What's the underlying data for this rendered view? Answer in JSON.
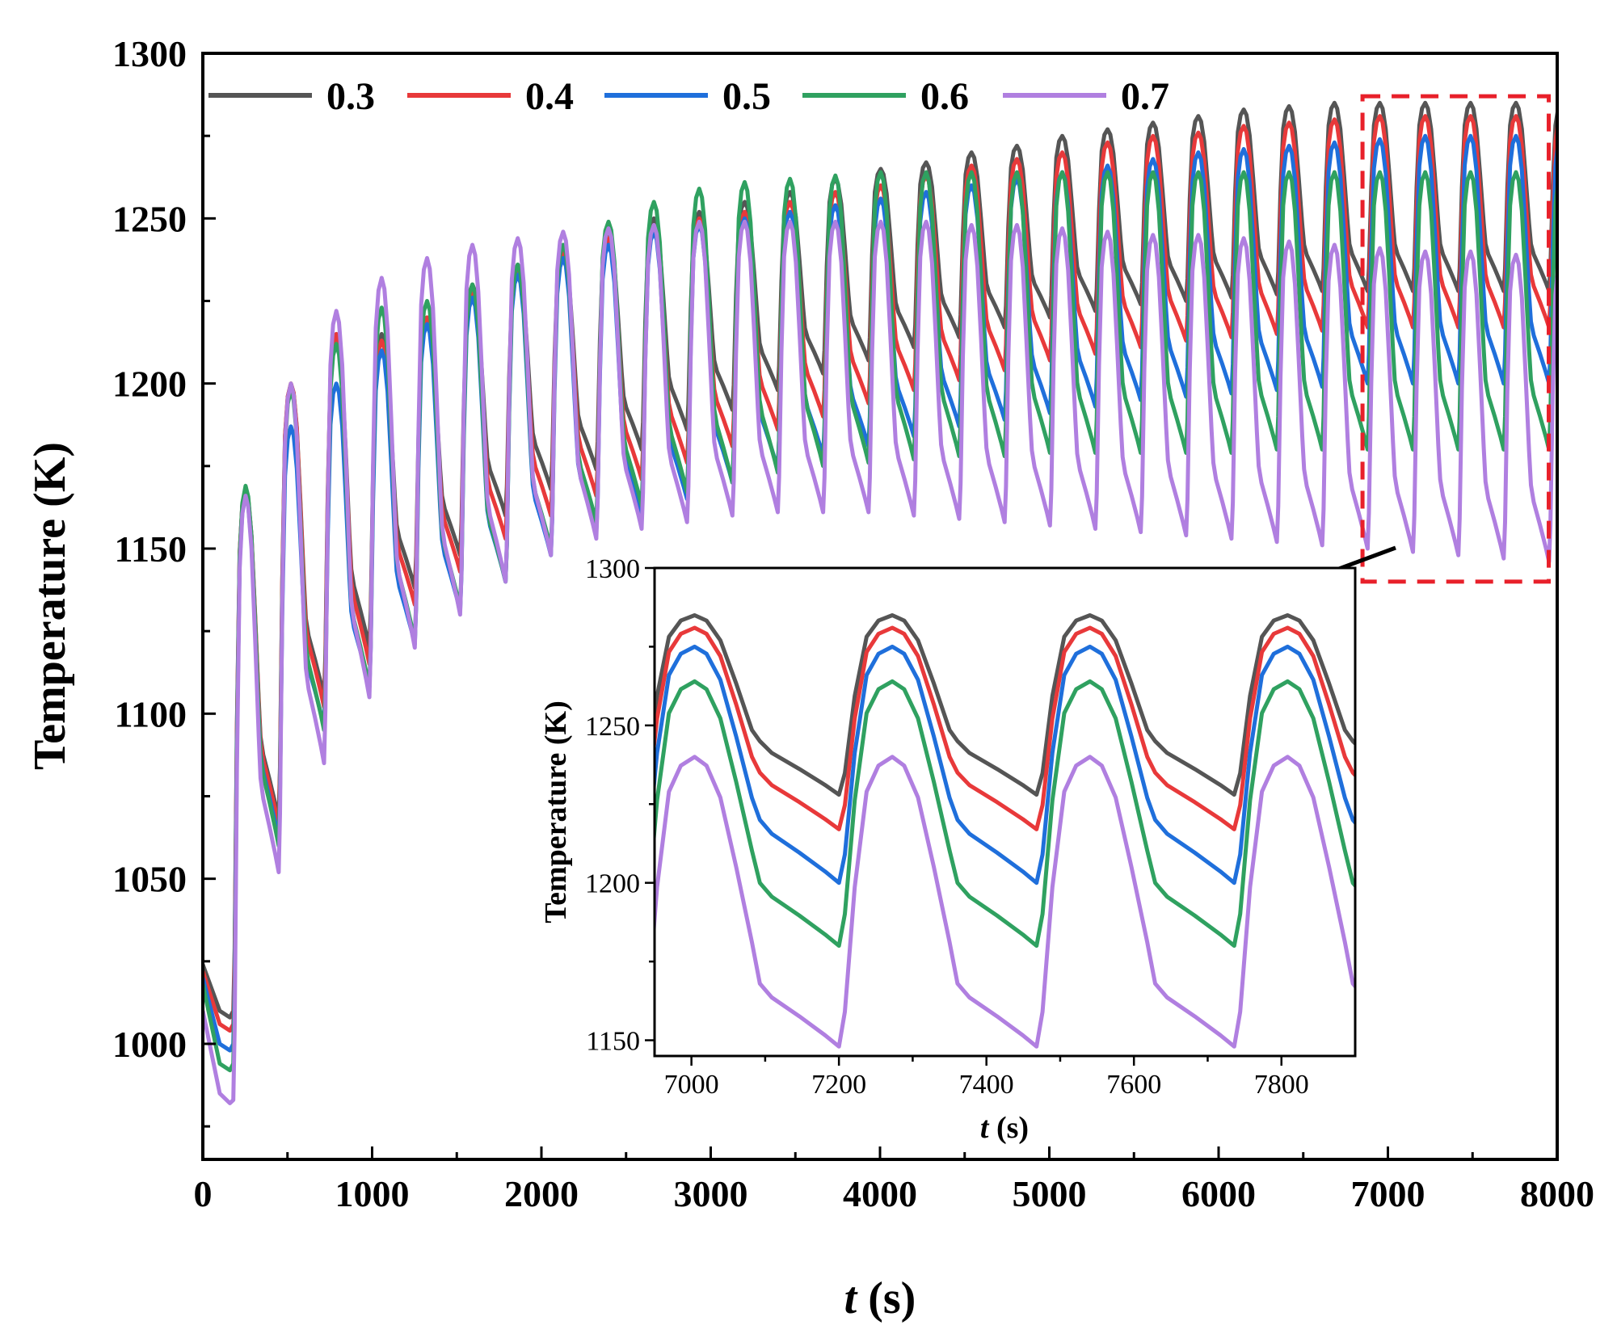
{
  "chart_data": [
    {
      "type": "line",
      "xlabel_italic": "t",
      "xlabel_rest": " (s)",
      "ylabel": "Temperature (K)",
      "xlim": [
        0,
        8000
      ],
      "ylim": [
        965,
        1300
      ],
      "xticks": [
        "0",
        "1000",
        "2000",
        "3000",
        "4000",
        "5000",
        "6000",
        "7000",
        "8000"
      ],
      "yticks": [
        "1000",
        "1050",
        "1100",
        "1150",
        "1200",
        "1250",
        "1300"
      ],
      "grid": false,
      "legend_position": "top",
      "cycle_period_s": 268,
      "series": [
        {
          "name": "0.3",
          "color": "#555555",
          "initial": [
            [
              0,
              1024
            ],
            [
              100,
              1010
            ],
            [
              160,
              1008
            ],
            [
              180,
              1010
            ]
          ],
          "cycle_start_s": 180,
          "peaks": [
            1168,
            1200,
            1215,
            1215,
            1220,
            1230,
            1236,
            1240,
            1245,
            1250,
            1252,
            1255,
            1258,
            1262,
            1265,
            1267,
            1270,
            1272,
            1275,
            1277,
            1279,
            1281,
            1283,
            1284,
            1285,
            1285,
            1285,
            1285,
            1285,
            1285
          ],
          "troughs": [
            1068,
            1105,
            1120,
            1138,
            1148,
            1160,
            1168,
            1174,
            1180,
            1186,
            1192,
            1198,
            1203,
            1207,
            1211,
            1214,
            1217,
            1220,
            1222,
            1224,
            1225,
            1226,
            1227,
            1228,
            1228,
            1228,
            1228,
            1228,
            1228
          ]
        },
        {
          "name": "0.4",
          "color": "#e8393a",
          "initial": [
            [
              0,
              1022
            ],
            [
              100,
              1006
            ],
            [
              160,
              1004
            ],
            [
              180,
              1006
            ]
          ],
          "cycle_start_s": 180,
          "peaks": [
            1168,
            1200,
            1215,
            1213,
            1220,
            1228,
            1235,
            1240,
            1244,
            1248,
            1250,
            1252,
            1255,
            1258,
            1260,
            1263,
            1266,
            1268,
            1270,
            1273,
            1275,
            1276,
            1278,
            1279,
            1280,
            1281,
            1281,
            1281,
            1281,
            1281
          ],
          "troughs": [
            1066,
            1102,
            1115,
            1133,
            1143,
            1153,
            1160,
            1166,
            1171,
            1176,
            1181,
            1186,
            1190,
            1194,
            1198,
            1201,
            1204,
            1207,
            1209,
            1211,
            1213,
            1214,
            1215,
            1216,
            1217,
            1217,
            1217,
            1217,
            1217
          ]
        },
        {
          "name": "0.5",
          "color": "#1f6fdb",
          "initial": [
            [
              0,
              1020
            ],
            [
              100,
              1000
            ],
            [
              160,
              998
            ],
            [
              180,
              1000
            ]
          ],
          "cycle_start_s": 180,
          "peaks": [
            1166,
            1187,
            1200,
            1210,
            1218,
            1226,
            1233,
            1238,
            1242,
            1246,
            1248,
            1250,
            1252,
            1254,
            1256,
            1258,
            1260,
            1262,
            1264,
            1266,
            1268,
            1270,
            1271,
            1272,
            1273,
            1274,
            1275,
            1275,
            1275,
            1275
          ],
          "troughs": [
            1062,
            1096,
            1108,
            1121,
            1131,
            1140,
            1148,
            1155,
            1160,
            1165,
            1170,
            1174,
            1178,
            1181,
            1184,
            1187,
            1189,
            1191,
            1193,
            1195,
            1196,
            1197,
            1198,
            1199,
            1200,
            1200,
            1200,
            1200,
            1200
          ]
        },
        {
          "name": "0.6",
          "color": "#2fa160",
          "initial": [
            [
              0,
              1018
            ],
            [
              100,
              994
            ],
            [
              160,
              992
            ],
            [
              180,
              994
            ]
          ],
          "cycle_start_s": 180,
          "peaks": [
            1169,
            1198,
            1212,
            1223,
            1225,
            1230,
            1236,
            1242,
            1249,
            1255,
            1259,
            1261,
            1262,
            1263,
            1264,
            1264,
            1264,
            1264,
            1264,
            1264,
            1264,
            1264,
            1264,
            1264,
            1264,
            1264,
            1264,
            1264,
            1264,
            1264
          ],
          "troughs": [
            1060,
            1095,
            1108,
            1122,
            1132,
            1140,
            1150,
            1158,
            1163,
            1167,
            1170,
            1173,
            1175,
            1176,
            1177,
            1178,
            1178,
            1179,
            1179,
            1179,
            1179,
            1179,
            1180,
            1180,
            1180,
            1180,
            1180,
            1180,
            1180
          ]
        },
        {
          "name": "0.7",
          "color": "#b07fe0",
          "initial": [
            [
              0,
              1010
            ],
            [
              100,
              985
            ],
            [
              160,
              982
            ],
            [
              180,
              983
            ]
          ],
          "cycle_start_s": 180,
          "peaks": [
            1166,
            1200,
            1222,
            1232,
            1238,
            1242,
            1244,
            1246,
            1247,
            1248,
            1249,
            1249,
            1249,
            1249,
            1249,
            1249,
            1248,
            1248,
            1247,
            1246,
            1245,
            1245,
            1244,
            1243,
            1242,
            1241,
            1240,
            1240,
            1239,
            1238
          ],
          "troughs": [
            1052,
            1085,
            1105,
            1120,
            1130,
            1140,
            1148,
            1153,
            1156,
            1158,
            1160,
            1161,
            1161,
            1161,
            1160,
            1159,
            1158,
            1157,
            1156,
            1155,
            1154,
            1153,
            1152,
            1151,
            1150,
            1149,
            1148,
            1147,
            1146
          ]
        }
      ],
      "zoom_box": {
        "x": [
          6850,
          7950
        ],
        "y": [
          1140,
          1287
        ],
        "color": "#e8202a"
      }
    },
    {
      "type": "line",
      "role": "inset",
      "xlabel_italic": "t",
      "xlabel_rest": " (s)",
      "ylabel": "Temperature (K)",
      "xlim": [
        6950,
        7900
      ],
      "ylim": [
        1145,
        1300
      ],
      "xticks": [
        "7000",
        "7200",
        "7400",
        "7600",
        "7800"
      ],
      "yticks": [
        "1150",
        "1200",
        "1250",
        "1300"
      ],
      "grid": false,
      "cycle_starts_s": [
        6932,
        7200,
        7468,
        7736
      ],
      "series": [
        {
          "name": "0.3",
          "color": "#555555",
          "peak": 1285,
          "knee": 1245,
          "trough": 1228
        },
        {
          "name": "0.4",
          "color": "#e8393a",
          "peak": 1281,
          "knee": 1235,
          "trough": 1217
        },
        {
          "name": "0.5",
          "color": "#1f6fdb",
          "peak": 1275,
          "knee": 1220,
          "trough": 1200
        },
        {
          "name": "0.6",
          "color": "#2fa160",
          "peak": 1264,
          "knee": 1200,
          "trough": 1180
        },
        {
          "name": "0.7",
          "color": "#b07fe0",
          "peak": 1240,
          "knee": 1168,
          "trough": 1148
        }
      ]
    }
  ]
}
